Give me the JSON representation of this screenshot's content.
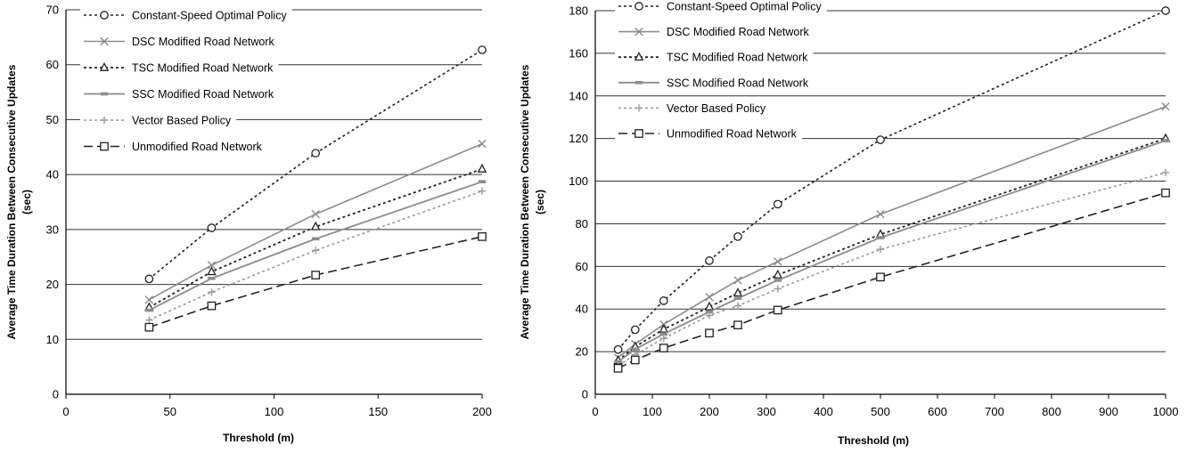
{
  "chart_data": [
    {
      "type": "line",
      "xlabel": "Threshold (m)",
      "ylabel_line1": "Average Time Duration Between Consecutive Updates",
      "ylabel_line2": "(sec)",
      "xlim": [
        0,
        200
      ],
      "ylim": [
        0,
        70
      ],
      "xticks": [
        0,
        50,
        100,
        150,
        200
      ],
      "yticks": [
        0,
        10,
        20,
        30,
        40,
        50,
        60,
        70
      ],
      "grid": "horizontal",
      "legend_position": "top-left",
      "x": [
        40,
        70,
        120,
        200
      ],
      "series": [
        {
          "name": "Constant-Speed Optimal Policy",
          "values": [
            21.0,
            30.3,
            43.9,
            62.7
          ]
        },
        {
          "name": "DSC Modified Road Network",
          "values": [
            17.2,
            23.5,
            32.8,
            45.6
          ]
        },
        {
          "name": "TSC Modified Road Network",
          "values": [
            15.8,
            22.3,
            30.5,
            41.0
          ]
        },
        {
          "name": "SSC Modified Road Network",
          "values": [
            15.3,
            21.1,
            28.3,
            38.7
          ]
        },
        {
          "name": "Vector Based Policy",
          "values": [
            13.5,
            18.6,
            26.2,
            37.0
          ]
        },
        {
          "name": "Unmodified Road Network",
          "values": [
            12.2,
            16.1,
            21.7,
            28.7
          ]
        }
      ]
    },
    {
      "type": "line",
      "xlabel": "Threshold (m)",
      "ylabel_line1": "Average Time Duration Between Consecutive Updates",
      "ylabel_line2": "(sec)",
      "xlim": [
        0,
        1000
      ],
      "ylim": [
        0,
        180
      ],
      "xticks": [
        0,
        100,
        200,
        300,
        400,
        500,
        600,
        700,
        800,
        900,
        1000
      ],
      "yticks": [
        0,
        20,
        40,
        60,
        80,
        100,
        120,
        140,
        160,
        180
      ],
      "grid": "horizontal",
      "legend_position": "top-left",
      "x": [
        40,
        70,
        120,
        200,
        250,
        320,
        500,
        1000
      ],
      "series": [
        {
          "name": "Constant-Speed Optimal Policy",
          "values": [
            21.0,
            30.3,
            43.9,
            62.7,
            74.0,
            89.2,
            119.4,
            180.0
          ]
        },
        {
          "name": "DSC Modified Road Network",
          "values": [
            17.2,
            23.5,
            32.8,
            45.6,
            53.5,
            62.3,
            84.5,
            135.0
          ]
        },
        {
          "name": "TSC Modified Road Network",
          "values": [
            15.8,
            22.3,
            30.5,
            41.0,
            47.5,
            56.0,
            75.0,
            120.0
          ]
        },
        {
          "name": "SSC Modified Road Network",
          "values": [
            15.3,
            21.1,
            28.3,
            38.7,
            45.0,
            53.5,
            73.5,
            119.0
          ]
        },
        {
          "name": "Vector Based Policy",
          "values": [
            13.5,
            18.6,
            26.2,
            37.0,
            41.5,
            49.5,
            68.0,
            104.0
          ]
        },
        {
          "name": "Unmodified Road Network",
          "values": [
            12.2,
            16.1,
            21.7,
            28.7,
            32.5,
            39.5,
            55.0,
            94.5
          ]
        }
      ]
    }
  ],
  "series_styles": [
    {
      "color": "#222222",
      "dash": "3,3",
      "marker": "circle",
      "width": 1.6
    },
    {
      "color": "#8c8c8c",
      "dash": "",
      "marker": "x",
      "width": 1.6
    },
    {
      "color": "#222222",
      "dash": "3,3",
      "marker": "triangle",
      "width": 1.8
    },
    {
      "color": "#8c8c8c",
      "dash": "",
      "marker": "dash",
      "width": 1.8
    },
    {
      "color": "#9a9a9a",
      "dash": "3,3",
      "marker": "plus",
      "width": 1.6
    },
    {
      "color": "#222222",
      "dash": "10,5",
      "marker": "square",
      "width": 1.6
    }
  ]
}
